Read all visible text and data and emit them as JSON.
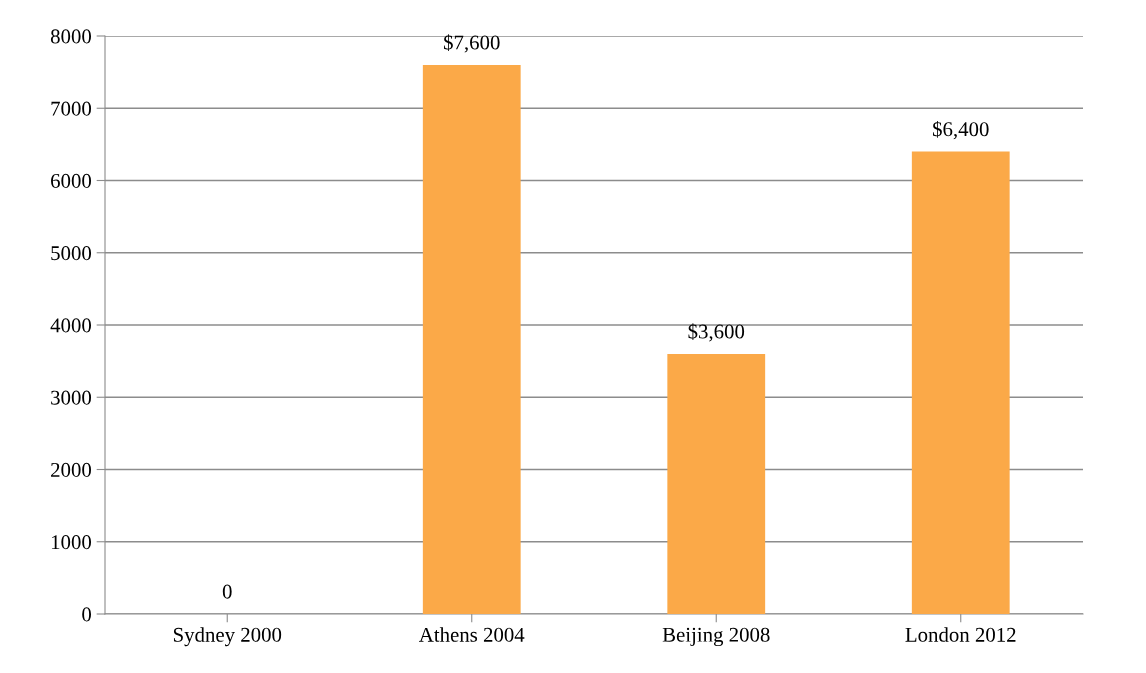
{
  "chart_data": {
    "type": "bar",
    "categories": [
      "Sydney 2000",
      "Athens 2004",
      "Beijing 2008",
      "London 2012"
    ],
    "values": [
      0,
      7600,
      3600,
      6400
    ],
    "value_labels": [
      "0",
      "$7,600",
      "$3,600",
      "$6,400"
    ],
    "color": "#fba948",
    "ylim": [
      0,
      8000
    ],
    "yticks": [
      0,
      1000,
      2000,
      3000,
      4000,
      5000,
      6000,
      7000,
      8000
    ],
    "grid": "y",
    "legend": false
  }
}
